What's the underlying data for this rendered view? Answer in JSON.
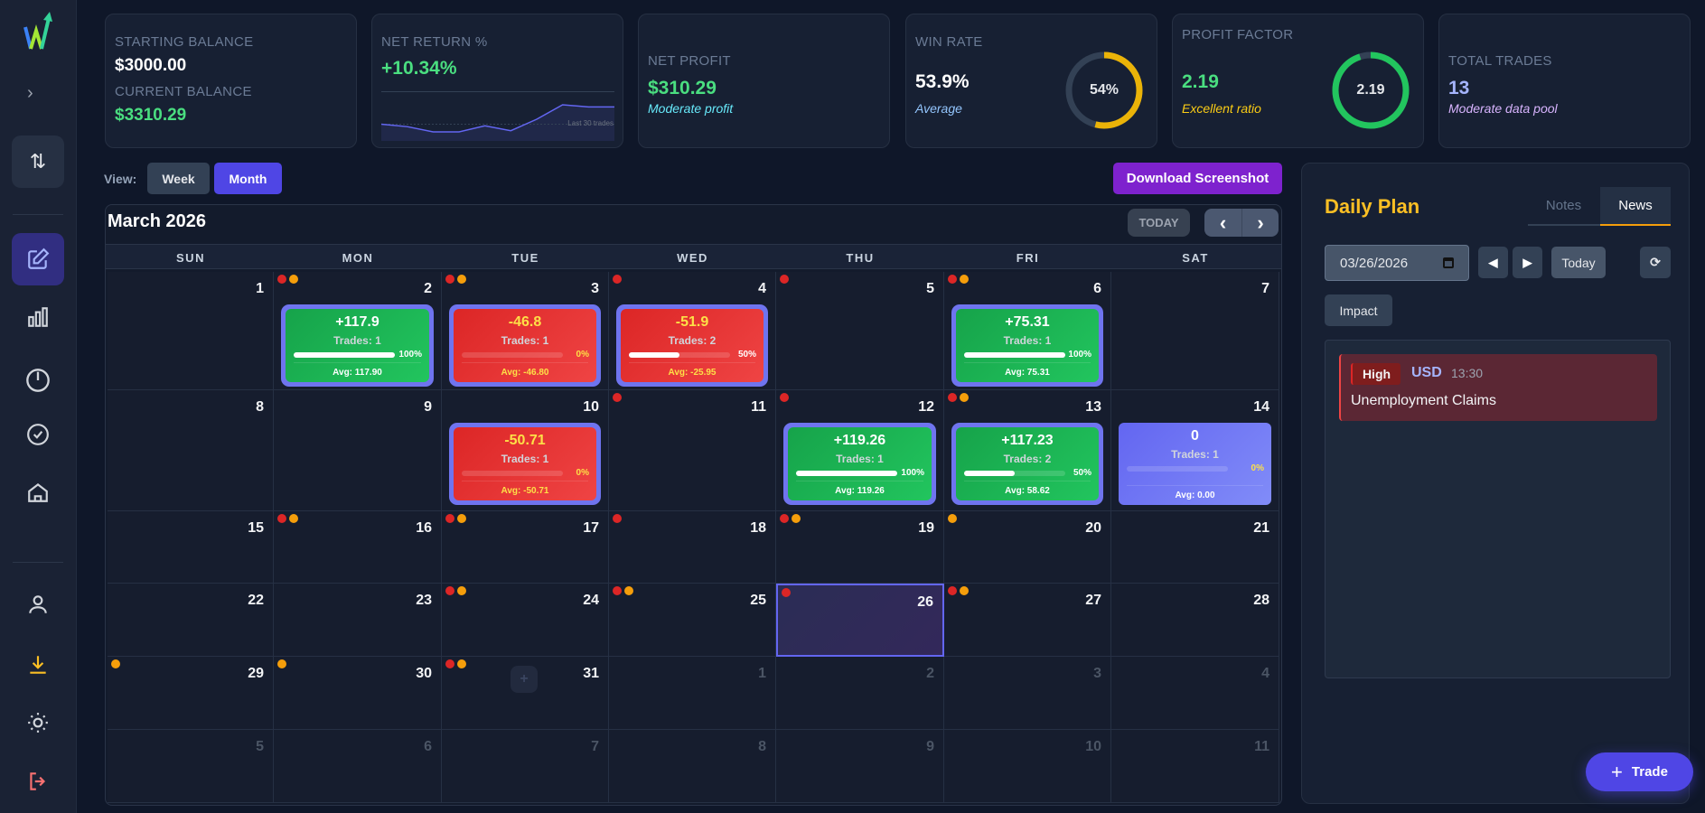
{
  "sidebar": {
    "items": [
      "swap-icon",
      "edit-icon",
      "chart-icon",
      "gauge-icon",
      "check-icon",
      "home-icon",
      "user-icon",
      "download-icon",
      "sun-icon",
      "logout-icon"
    ]
  },
  "stats": {
    "starting_label": "STARTING BALANCE",
    "starting_value": "$3000.00",
    "current_label": "CURRENT BALANCE",
    "current_value": "$3310.29",
    "net_return_label": "NET RETURN %",
    "net_return_value": "+10.34%",
    "sparkline_caption": "Last 30 trades",
    "sparkline": [
      3000,
      2985,
      2953,
      2953,
      2990,
      2960,
      3030,
      3118,
      3105,
      3105
    ],
    "net_profit_label": "NET PROFIT",
    "net_profit_value": "$310.29",
    "net_profit_sub": "Moderate profit",
    "win_rate_label": "WIN RATE",
    "win_rate_value": "53.9%",
    "win_rate_sub": "Average",
    "win_rate_ring": "54%",
    "win_rate_fraction": 0.539,
    "pf_label": "PROFIT FACTOR",
    "pf_value": "2.19",
    "pf_sub": "Excellent ratio",
    "pf_ring": "2.19",
    "pf_fraction": 0.95,
    "total_label": "TOTAL TRADES",
    "total_value": "13",
    "total_sub": "Moderate data pool"
  },
  "view": {
    "label": "View:",
    "week": "Week",
    "month": "Month"
  },
  "download_label": "Download Screenshot",
  "calendar": {
    "title": "March 2026",
    "today_label": "TODAY",
    "prev": "‹",
    "next": "›",
    "weekdays": [
      "SUN",
      "MON",
      "TUE",
      "WED",
      "THU",
      "FRI",
      "SAT"
    ],
    "weeks": [
      [
        {
          "d": "1"
        },
        {
          "d": "2",
          "dots": [
            "r",
            "o"
          ],
          "trade": {
            "pnl": "+117.9",
            "trades": "Trades: 1",
            "pct": "100%",
            "win": 1,
            "avg": "Avg: 117.90",
            "kind": "win"
          }
        },
        {
          "d": "3",
          "dots": [
            "r",
            "o"
          ],
          "trade": {
            "pnl": "-46.8",
            "trades": "Trades: 1",
            "pct": "0%",
            "win": 0,
            "avg": "Avg: -46.80",
            "kind": "loss"
          }
        },
        {
          "d": "4",
          "dots": [
            "r"
          ],
          "trade": {
            "pnl": "-51.9",
            "trades": "Trades: 2",
            "pct": "50%",
            "win": 0.5,
            "avg": "Avg: -25.95",
            "kind": "loss"
          }
        },
        {
          "d": "5",
          "dots": [
            "r"
          ]
        },
        {
          "d": "6",
          "dots": [
            "r",
            "o"
          ],
          "trade": {
            "pnl": "+75.31",
            "trades": "Trades: 1",
            "pct": "100%",
            "win": 1,
            "avg": "Avg: 75.31",
            "kind": "win"
          }
        },
        {
          "d": "7"
        }
      ],
      [
        {
          "d": "8"
        },
        {
          "d": "9"
        },
        {
          "d": "10",
          "trade": {
            "pnl": "-50.71",
            "trades": "Trades: 1",
            "pct": "0%",
            "win": 0,
            "avg": "Avg: -50.71",
            "kind": "loss"
          }
        },
        {
          "d": "11",
          "dots": [
            "r"
          ]
        },
        {
          "d": "12",
          "dots": [
            "r"
          ],
          "trade": {
            "pnl": "+119.26",
            "trades": "Trades: 1",
            "pct": "100%",
            "win": 1,
            "avg": "Avg: 119.26",
            "kind": "win"
          }
        },
        {
          "d": "13",
          "dots": [
            "r",
            "o"
          ],
          "trade": {
            "pnl": "+117.23",
            "trades": "Trades: 2",
            "pct": "50%",
            "win": 0.5,
            "avg": "Avg: 58.62",
            "kind": "win"
          }
        },
        {
          "d": "14",
          "trade": {
            "pnl": "0",
            "trades": "Trades: 1",
            "pct": "0%",
            "win": 0,
            "avg": "Avg: 0.00",
            "kind": "flat"
          }
        }
      ],
      [
        {
          "d": "15"
        },
        {
          "d": "16",
          "dots": [
            "r",
            "o"
          ]
        },
        {
          "d": "17",
          "dots": [
            "r",
            "o"
          ]
        },
        {
          "d": "18",
          "dots": [
            "r"
          ]
        },
        {
          "d": "19",
          "dots": [
            "r",
            "o"
          ]
        },
        {
          "d": "20",
          "dots": [
            "o"
          ]
        },
        {
          "d": "21"
        }
      ],
      [
        {
          "d": "22"
        },
        {
          "d": "23"
        },
        {
          "d": "24",
          "dots": [
            "r",
            "o"
          ]
        },
        {
          "d": "25",
          "dots": [
            "r",
            "o"
          ]
        },
        {
          "d": "26",
          "dots": [
            "r"
          ],
          "today": true
        },
        {
          "d": "27",
          "dots": [
            "r",
            "o"
          ]
        },
        {
          "d": "28"
        }
      ],
      [
        {
          "d": "29",
          "dots": [
            "o"
          ]
        },
        {
          "d": "30",
          "dots": [
            "o"
          ]
        },
        {
          "d": "31",
          "dots": [
            "r",
            "o"
          ],
          "add": "+"
        },
        {
          "d": "1",
          "muted": true
        },
        {
          "d": "2",
          "muted": true
        },
        {
          "d": "3",
          "muted": true
        },
        {
          "d": "4",
          "muted": true
        }
      ],
      [
        {
          "d": "5",
          "muted": true
        },
        {
          "d": "6",
          "muted": true
        },
        {
          "d": "7",
          "muted": true
        },
        {
          "d": "8",
          "muted": true
        },
        {
          "d": "9",
          "muted": true
        },
        {
          "d": "10",
          "muted": true
        },
        {
          "d": "11",
          "muted": true
        }
      ]
    ]
  },
  "plan": {
    "title": "Daily Plan",
    "tabs": [
      "Notes",
      "News"
    ],
    "date": "03/26/2026",
    "today": "Today",
    "impact": "Impact",
    "news": [
      {
        "impact": "High",
        "currency": "USD",
        "time": "13:30",
        "title": "Unemployment Claims"
      }
    ]
  },
  "trade_button": "Trade",
  "colors": {
    "accent": "#4f46e5",
    "win": "#22c55e",
    "loss": "#ef4444",
    "gold": "#fbbf24"
  }
}
